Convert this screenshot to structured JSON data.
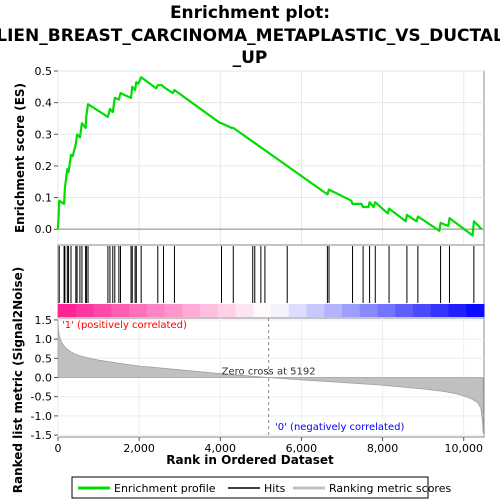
{
  "chart_data": {
    "type": "line",
    "title_lines": [
      "Enrichment plot:",
      "LIEN_BREAST_CARCINOMA_METAPLASTIC_VS_DUCTAL",
      "_UP"
    ],
    "colors": {
      "enrichment": "#00dd00",
      "hits": "#000000",
      "metric": "#c0c0c0",
      "positive_label": "#ff0000",
      "negative_label": "#0000ff",
      "bar_red": "#ff0000",
      "bar_blue": "#0000ff"
    },
    "es_panel": {
      "ylabel": "Enrichment score (ES)",
      "ylim": [
        -0.05,
        0.5
      ],
      "yticks": [
        0.0,
        0.1,
        0.2,
        0.3,
        0.4,
        0.5
      ],
      "ytick_labels": [
        "0.0",
        "0.1",
        "0.2",
        "0.3",
        "0.4",
        "0.5"
      ],
      "xlim": [
        0,
        10500
      ],
      "series": [
        {
          "x": [
            0,
            30,
            150,
            170,
            230,
            260,
            320,
            360,
            440,
            470,
            540,
            590,
            680,
            700,
            740,
            1230,
            1280,
            1350,
            1400,
            1500,
            1540,
            1800,
            1830,
            1900,
            1930,
            1980,
            2050,
            2420,
            2460,
            2560,
            2600,
            2830,
            2870,
            4000,
            4030,
            4280,
            4320,
            6640,
            6680,
            7230,
            7260,
            7480,
            7520,
            7650,
            7680,
            7780,
            7820,
            8130,
            8160,
            8570,
            8600,
            8840,
            8870,
            9400,
            9430,
            9620,
            9650,
            10220,
            10250,
            10440
          ],
          "y": [
            0.0,
            0.09,
            0.08,
            0.13,
            0.19,
            0.18,
            0.235,
            0.23,
            0.27,
            0.3,
            0.29,
            0.335,
            0.32,
            0.36,
            0.395,
            0.355,
            0.38,
            0.37,
            0.415,
            0.41,
            0.43,
            0.415,
            0.45,
            0.44,
            0.465,
            0.46,
            0.48,
            0.445,
            0.455,
            0.455,
            0.45,
            0.43,
            0.44,
            0.335,
            0.335,
            0.32,
            0.32,
            0.11,
            0.125,
            0.09,
            0.08,
            0.08,
            0.07,
            0.07,
            0.085,
            0.07,
            0.085,
            0.05,
            0.065,
            0.025,
            0.045,
            0.025,
            0.04,
            -0.005,
            0.02,
            0.01,
            0.035,
            -0.02,
            0.025,
            0.0
          ]
        }
      ]
    },
    "hits": {
      "positions": [
        30,
        150,
        170,
        230,
        260,
        320,
        440,
        470,
        540,
        590,
        680,
        700,
        740,
        1230,
        1280,
        1350,
        1400,
        1500,
        1540,
        1800,
        1830,
        1900,
        1930,
        2050,
        2460,
        2600,
        2870,
        4030,
        4320,
        4800,
        4850,
        5000,
        5100,
        5650,
        6640,
        6680,
        7260,
        7520,
        7680,
        7820,
        8160,
        8600,
        8870,
        9430,
        9650,
        10250
      ]
    },
    "metric_panel": {
      "ylabel": "Ranked list metric (Signal2Noise)",
      "ylim": [
        -1.55,
        1.55
      ],
      "yticks": [
        -1.5,
        -1.0,
        -0.5,
        0.0,
        0.5,
        1.0,
        1.5
      ],
      "ytick_labels": [
        "-1.5",
        "-1.0",
        "-0.5",
        "0.0",
        "0.5",
        "1.0",
        "1.5"
      ],
      "xlim": [
        0,
        10500
      ],
      "series": [
        {
          "x": [
            0,
            10,
            30,
            60,
            100,
            150,
            200,
            300,
            400,
            500,
            700,
            1000,
            1500,
            2000,
            3000,
            4000,
            5192,
            6000,
            7000,
            8000,
            9000,
            9500,
            9800,
            10000,
            10200,
            10350,
            10420,
            10460,
            10480
          ],
          "y": [
            1.5,
            1.25,
            1.1,
            1.0,
            0.9,
            0.82,
            0.76,
            0.68,
            0.62,
            0.58,
            0.52,
            0.45,
            0.37,
            0.3,
            0.2,
            0.1,
            0.0,
            -0.06,
            -0.13,
            -0.2,
            -0.3,
            -0.36,
            -0.42,
            -0.48,
            -0.56,
            -0.66,
            -0.8,
            -1.1,
            -1.45
          ]
        }
      ],
      "zero_cross_label": "Zero cross at 5192",
      "zero_cross": 5192,
      "positive_label": "'1' (positively correlated)",
      "negative_label": "'0' (negatively correlated)"
    },
    "xaxis": {
      "xlabel": "Rank in Ordered Dataset",
      "xticks": [
        0,
        2000,
        4000,
        6000,
        8000,
        10000
      ],
      "xtick_labels": [
        "0",
        "2,000",
        "4,000",
        "6,000",
        "8,000",
        "10,000"
      ]
    },
    "legend": {
      "placement": "bottom",
      "entries": [
        "Enrichment profile",
        "Hits",
        "Ranking metric scores"
      ]
    },
    "grid": true
  }
}
